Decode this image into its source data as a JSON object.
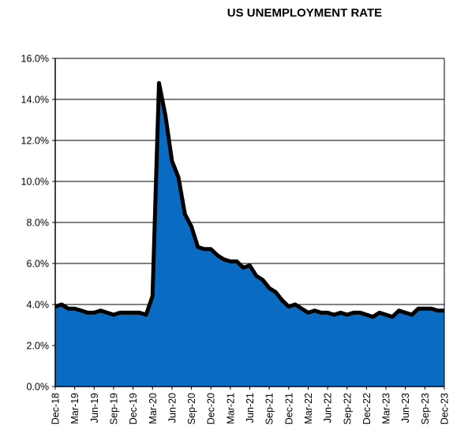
{
  "chart_data": {
    "type": "area",
    "title": "US UNEMPLOYMENT RATE",
    "xlabel": "",
    "ylabel": "",
    "ylim": [
      0,
      16
    ],
    "y_tick_labels": [
      "0.0%",
      "2.0%",
      "4.0%",
      "6.0%",
      "8.0%",
      "10.0%",
      "12.0%",
      "14.0%",
      "16.0%"
    ],
    "x_tick_labels": [
      "Dec-18",
      "Mar-19",
      "Jun-19",
      "Sep-19",
      "Dec-19",
      "Mar-20",
      "Jun-20",
      "Sep-20",
      "Dec-20",
      "Mar-21",
      "Jun-21",
      "Sep-21",
      "Dec-21",
      "Mar-22",
      "Jun-22",
      "Sep-22",
      "Dec-22",
      "Mar-23",
      "Jun-23",
      "Sep-23",
      "Dec-23"
    ],
    "grid": true,
    "legend": "none",
    "x": [
      "Dec-18",
      "Jan-19",
      "Feb-19",
      "Mar-19",
      "Apr-19",
      "May-19",
      "Jun-19",
      "Jul-19",
      "Aug-19",
      "Sep-19",
      "Oct-19",
      "Nov-19",
      "Dec-19",
      "Jan-20",
      "Feb-20",
      "Mar-20",
      "Apr-20",
      "May-20",
      "Jun-20",
      "Jul-20",
      "Aug-20",
      "Sep-20",
      "Oct-20",
      "Nov-20",
      "Dec-20",
      "Jan-21",
      "Feb-21",
      "Mar-21",
      "Apr-21",
      "May-21",
      "Jun-21",
      "Jul-21",
      "Aug-21",
      "Sep-21",
      "Oct-21",
      "Nov-21",
      "Dec-21",
      "Jan-22",
      "Feb-22",
      "Mar-22",
      "Apr-22",
      "May-22",
      "Jun-22",
      "Jul-22",
      "Aug-22",
      "Sep-22",
      "Oct-22",
      "Nov-22",
      "Dec-22",
      "Jan-23",
      "Feb-23",
      "Mar-23",
      "Apr-23",
      "May-23",
      "Jun-23",
      "Jul-23",
      "Aug-23",
      "Sep-23",
      "Oct-23",
      "Nov-23",
      "Dec-23"
    ],
    "series": [
      {
        "values": [
          3.9,
          4.0,
          3.8,
          3.8,
          3.7,
          3.6,
          3.6,
          3.7,
          3.6,
          3.5,
          3.6,
          3.6,
          3.6,
          3.6,
          3.5,
          4.4,
          14.8,
          13.2,
          11.0,
          10.2,
          8.4,
          7.8,
          6.8,
          6.7,
          6.7,
          6.4,
          6.2,
          6.1,
          6.1,
          5.8,
          5.9,
          5.4,
          5.2,
          4.8,
          4.6,
          4.2,
          3.9,
          4.0,
          3.8,
          3.6,
          3.7,
          3.6,
          3.6,
          3.5,
          3.6,
          3.5,
          3.6,
          3.6,
          3.5,
          3.4,
          3.6,
          3.5,
          3.4,
          3.7,
          3.6,
          3.5,
          3.8,
          3.8,
          3.8,
          3.7,
          3.7
        ]
      }
    ],
    "colors": {
      "fill": "#0a6bc2",
      "line": "#000000",
      "grid": "#000000"
    }
  }
}
